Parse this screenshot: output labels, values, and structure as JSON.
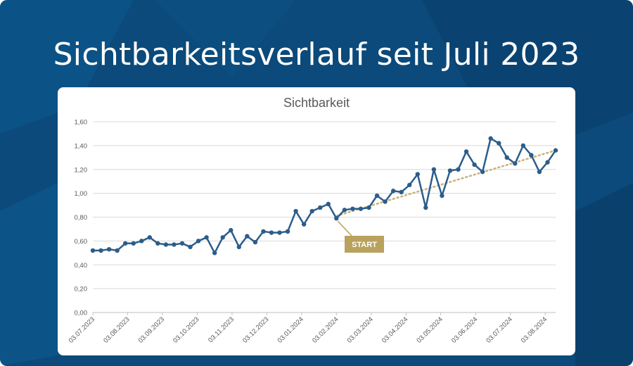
{
  "headline": "Sichtbarkeitsverlauf seit Juli 2023",
  "colors": {
    "background": "#0b4a7a",
    "line": "#2c5d8a",
    "trend": "#c8b27a",
    "annotation": "#b9a25e"
  },
  "chart_data": {
    "type": "line",
    "title": "Sichtbarkeit",
    "xlabel": "",
    "ylabel": "",
    "ylim": [
      0,
      1.6
    ],
    "y_ticks": [
      "0,00",
      "0,20",
      "0,40",
      "0,60",
      "0,80",
      "1,00",
      "1,20",
      "1,40",
      "1,60"
    ],
    "x_ticks": [
      "03.07.2023",
      "03.08.2023",
      "03.09.2023",
      "03.10.2023",
      "03.11.2023",
      "03.12.2023",
      "03.01.2024",
      "03.02.2024",
      "03.03.2024",
      "03.04.2024",
      "03.05.2024",
      "03.06.2024",
      "03.07.2024",
      "03.08.2024"
    ],
    "grid": true,
    "series": [
      {
        "name": "",
        "values": [
          0.52,
          0.52,
          0.53,
          0.52,
          0.58,
          0.58,
          0.6,
          0.63,
          0.58,
          0.57,
          0.57,
          0.58,
          0.55,
          0.6,
          0.63,
          0.5,
          0.63,
          0.69,
          0.55,
          0.64,
          0.59,
          0.68,
          0.67,
          0.67,
          0.68,
          0.85,
          0.74,
          0.85,
          0.88,
          0.91,
          0.79,
          0.86,
          0.87,
          0.87,
          0.88,
          0.98,
          0.93,
          1.02,
          1.01,
          1.07,
          1.16,
          0.88,
          1.2,
          0.98,
          1.19,
          1.2,
          1.35,
          1.24,
          1.18,
          1.46,
          1.42,
          1.3,
          1.25,
          1.4,
          1.32,
          1.18,
          1.26,
          1.36
        ]
      }
    ],
    "trendline": {
      "start_index": 30,
      "start_value": 0.81,
      "end_value": 1.36
    },
    "annotation": {
      "label": "START",
      "point_index": 30
    }
  }
}
